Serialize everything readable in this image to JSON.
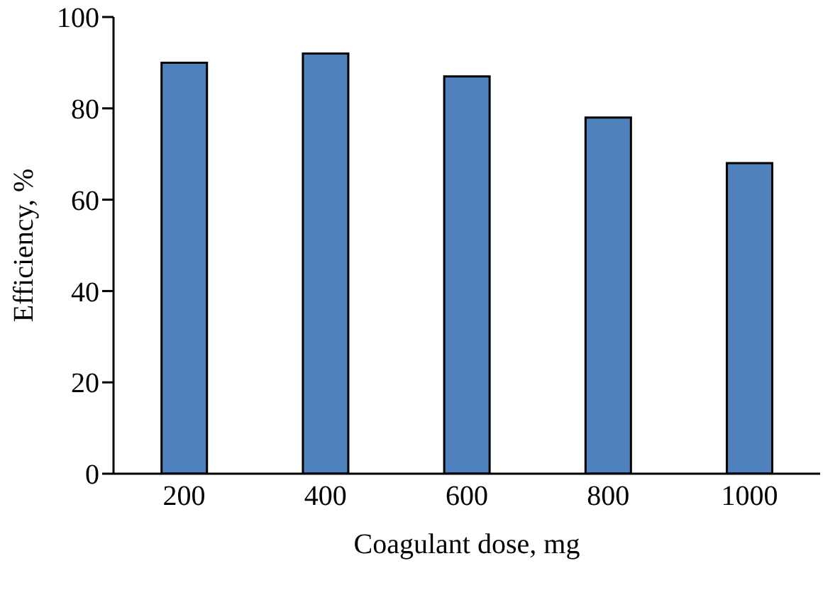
{
  "chart_data": {
    "type": "bar",
    "xlabel": "Coagulant dose, mg",
    "ylabel": "Efficiency, %",
    "categories": [
      "200",
      "400",
      "600",
      "800",
      "1000"
    ],
    "values": [
      90,
      92,
      87,
      78,
      68
    ],
    "color": "#4f81bd",
    "ylim": [
      0,
      100
    ],
    "yticks": [
      0,
      20,
      40,
      60,
      80,
      100
    ],
    "grid": false,
    "legend": false
  }
}
